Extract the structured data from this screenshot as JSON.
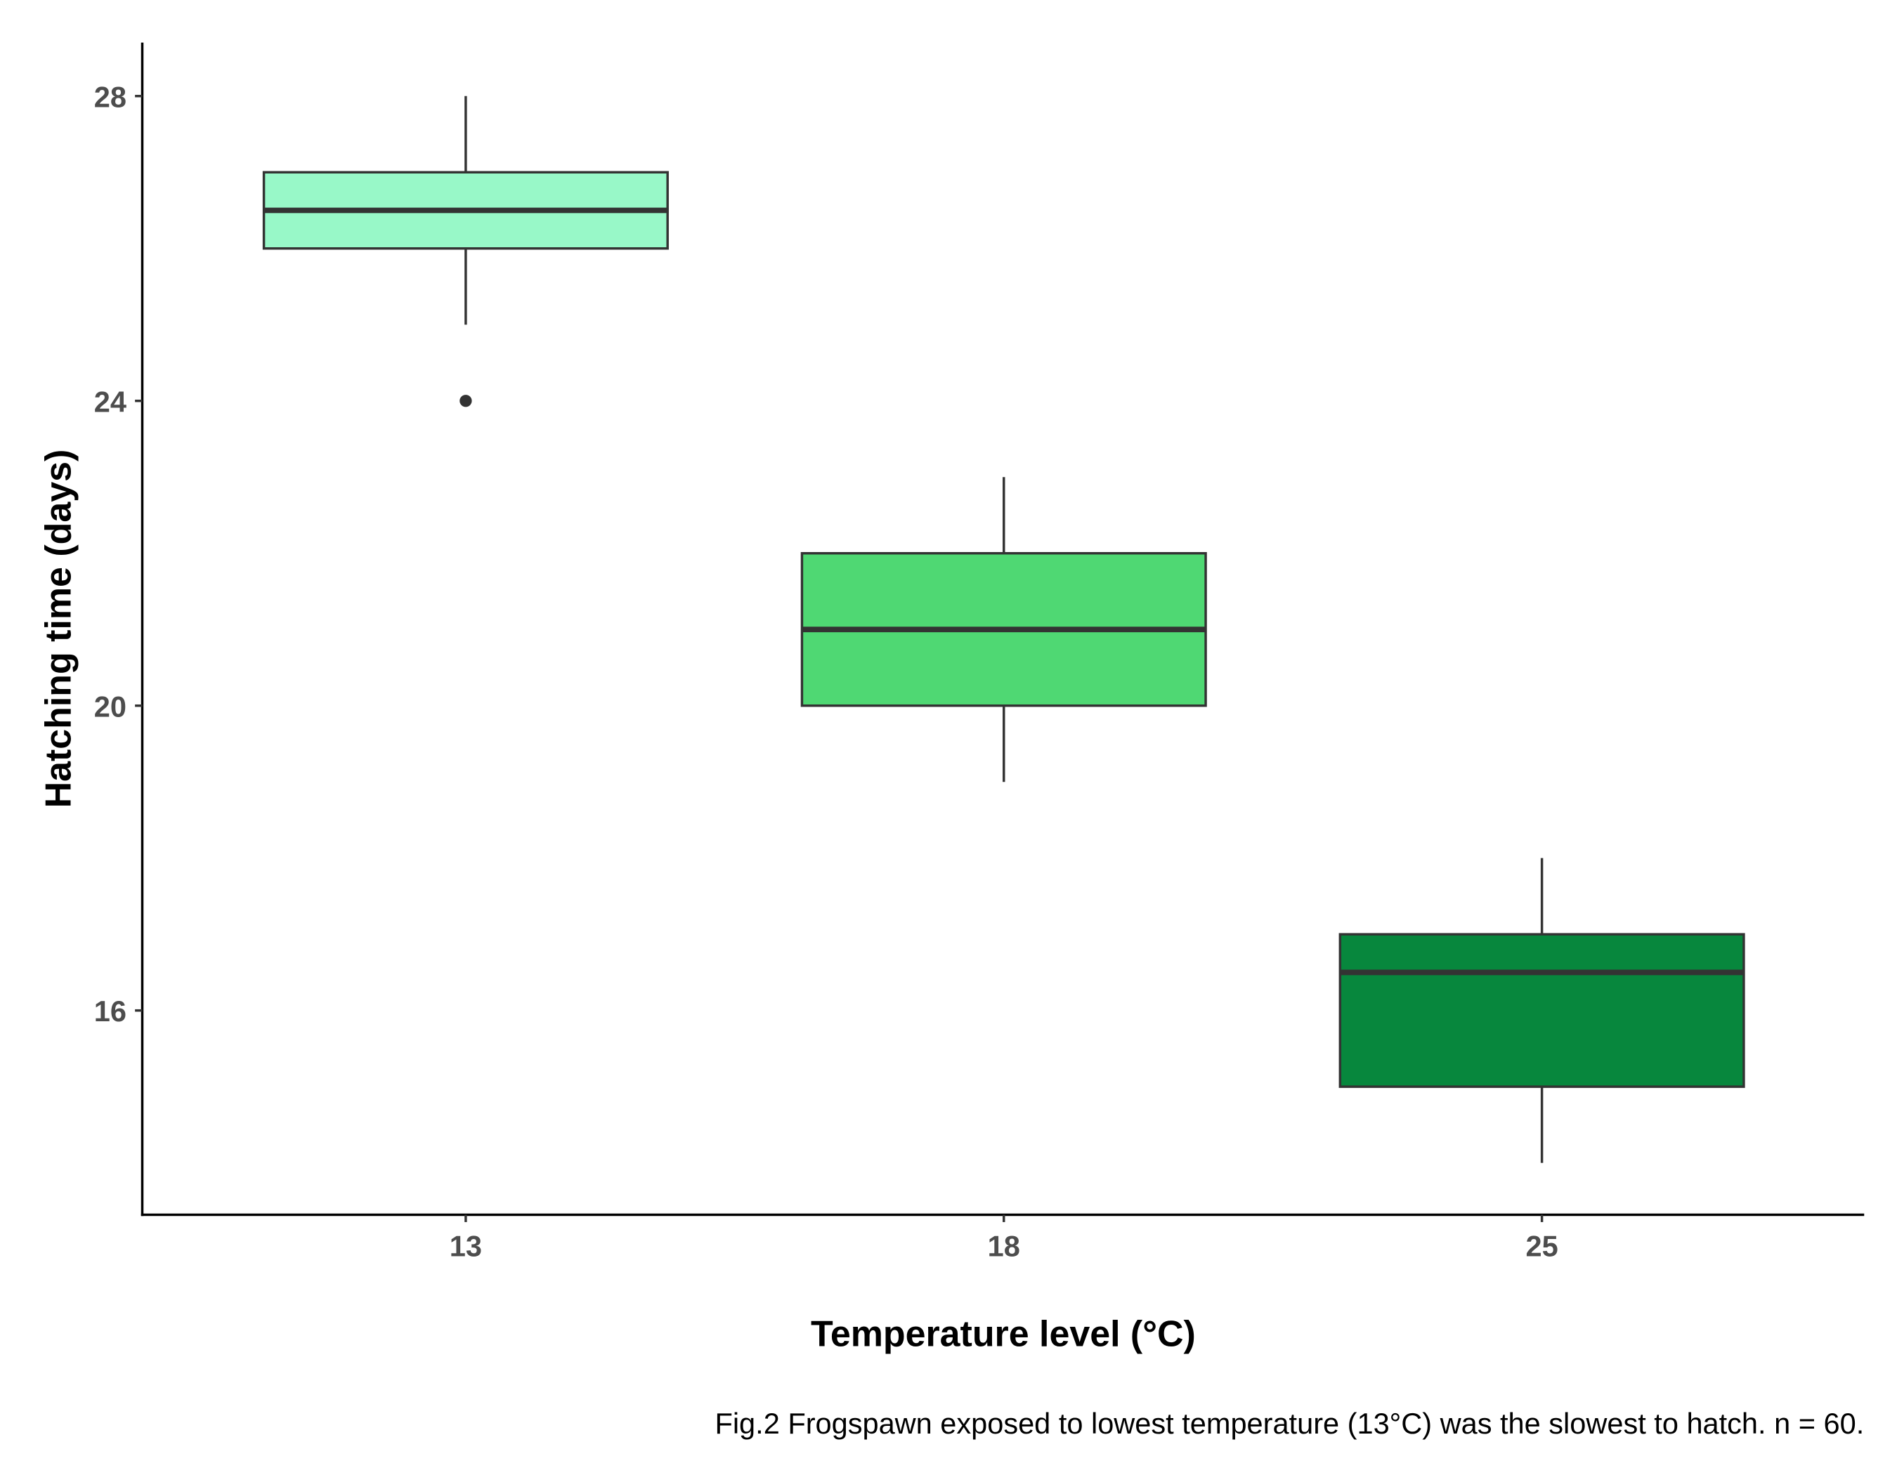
{
  "chart_data": {
    "type": "boxplot",
    "xlabel": "Temperature level (°C)",
    "ylabel": "Hatching time (days)",
    "caption": "Fig.2 Frogspawn exposed to lowest temperature (13°C) was the slowest to hatch. n = 60.",
    "categories": [
      "13",
      "18",
      "25"
    ],
    "yticks": [
      16,
      20,
      24,
      28
    ],
    "ytick_labels": [
      "16",
      "20",
      "24",
      "28"
    ],
    "ylim": [
      13.3,
      28.7
    ],
    "grid": false,
    "legend": "none",
    "boxes": [
      {
        "category": "13",
        "whisker_low": 25,
        "q1": 26,
        "median": 26.5,
        "q3": 27,
        "whisker_high": 28,
        "outliers": [
          24
        ],
        "color": "#98F8C8"
      },
      {
        "category": "18",
        "whisker_low": 19,
        "q1": 20,
        "median": 21,
        "q3": 22,
        "whisker_high": 23,
        "outliers": [],
        "color": "#4FD873"
      },
      {
        "category": "25",
        "whisker_low": 14,
        "q1": 15,
        "median": 16.5,
        "q3": 17,
        "whisker_high": 18,
        "outliers": [],
        "color": "#07873D"
      }
    ]
  }
}
